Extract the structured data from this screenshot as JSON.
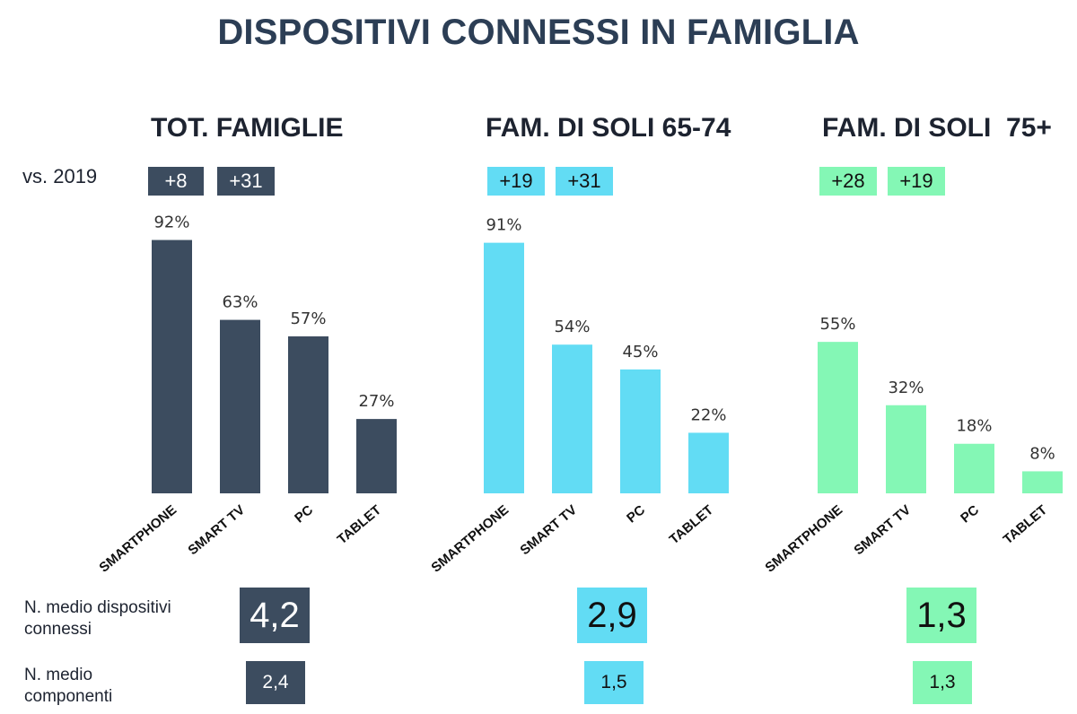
{
  "title": "DISPOSITIVI CONNESSI IN FAMIGLIA",
  "vs_label": "vs. 2019",
  "row_labels": {
    "devices": "N. medio dispositivi connessi",
    "members": "N. medio componenti"
  },
  "colors": {
    "tot": "#3c4c5f",
    "fam6574": "#62dcf4",
    "fam75": "#84f7b5"
  },
  "chart_data": [
    {
      "type": "bar",
      "title": "TOT. FAMIGLIE",
      "categories": [
        "SMARTPHONE",
        "SMART TV",
        "PC",
        "TABLET"
      ],
      "values": [
        92,
        63,
        57,
        27
      ],
      "value_labels": [
        "92%",
        "63%",
        "57%",
        "27%"
      ],
      "vs_2019": [
        "+8",
        "+31"
      ],
      "avg_devices": "4,2",
      "avg_members": "2,4",
      "ylim": [
        0,
        100
      ]
    },
    {
      "type": "bar",
      "title": "FAM. DI SOLI 65-74",
      "categories": [
        "SMARTPHONE",
        "SMART TV",
        "PC",
        "TABLET"
      ],
      "values": [
        91,
        54,
        45,
        22
      ],
      "value_labels": [
        "91%",
        "54%",
        "45%",
        "22%"
      ],
      "vs_2019": [
        "+19",
        "+31"
      ],
      "avg_devices": "2,9",
      "avg_members": "1,5",
      "ylim": [
        0,
        100
      ]
    },
    {
      "type": "bar",
      "title": "FAM. DI SOLI  75+",
      "categories": [
        "SMARTPHONE",
        "SMART TV",
        "PC",
        "TABLET"
      ],
      "values": [
        55,
        32,
        18,
        8
      ],
      "value_labels": [
        "55%",
        "32%",
        "18%",
        "8%"
      ],
      "vs_2019": [
        "+28",
        "+19"
      ],
      "avg_devices": "1,3",
      "avg_members": "1,3",
      "ylim": [
        0,
        100
      ]
    }
  ]
}
